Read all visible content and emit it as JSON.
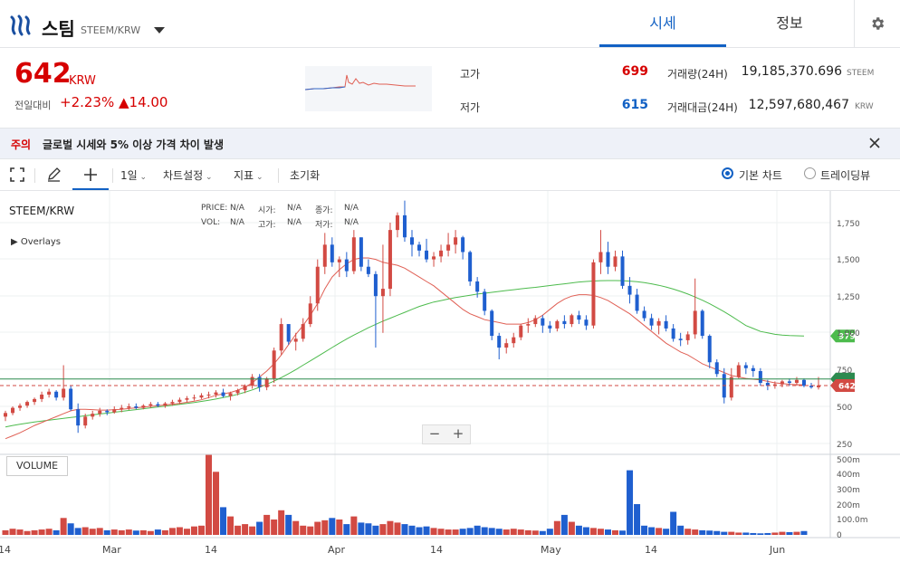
{
  "header": {
    "coin_name": "스팀",
    "pair": "STEEM/KRW",
    "tab_price": "시세",
    "tab_info": "정보"
  },
  "price": {
    "current": "642",
    "unit": "KRW",
    "change_label": "전일대비",
    "change_rate": "+2.23%",
    "change_amount": "▲14.00"
  },
  "stats": {
    "high_label": "고가",
    "high_value": "699",
    "low_label": "저가",
    "low_value": "615",
    "volume_label": "거래량(24H)",
    "volume_value": "19,185,370.696",
    "volume_unit": "STEEM",
    "amount_label": "거래대금(24H)",
    "amount_value": "12,597,680,467",
    "amount_unit": "KRW"
  },
  "notice": {
    "tag": "주의",
    "text": "글로벌 시세와 5% 이상 가격 차이 발생"
  },
  "toolbar": {
    "interval": "1일",
    "chart_settings": "차트설정",
    "indicators": "지표",
    "reset": "초기화",
    "basic_chart": "기본 차트",
    "tradingview": "트레이딩뷰"
  },
  "legend": {
    "symbol": "STEEM/KRW",
    "overlays": "▶ Overlays",
    "price_label": "PRICE:",
    "price_value": "N/A",
    "open_label": "시가:",
    "open_value": "N/A",
    "close_label": "종가:",
    "close_value": "N/A",
    "vol_label": "VOL:",
    "vol_value": "N/A",
    "high_label": "고가:",
    "high_value": "N/A",
    "low_label": "저가:",
    "low_value": "N/A",
    "volume_box": "VOLUME"
  },
  "colors": {
    "up": "#d24a43",
    "down": "#1f5fcf",
    "ma_short": "#e06055",
    "ma_long": "#4dbb4d",
    "accent": "#1261c4",
    "price_red": "#d60000"
  },
  "chart_data": {
    "type": "candlestick",
    "price_axis": {
      "ticks": [
        "1,750",
        "1,500",
        "1,250",
        "1,000",
        "750",
        "500",
        "250"
      ],
      "markers": [
        {
          "value": 979,
          "label": "979",
          "color": "#4dbb4d"
        },
        {
          "value": 686,
          "label": "",
          "color": "#2c8a4f"
        },
        {
          "value": 642,
          "label": "642",
          "color": "#d24a43"
        }
      ]
    },
    "volume_axis": {
      "ticks": [
        "500m",
        "400m",
        "300m",
        "200m",
        "100.0m",
        "0"
      ]
    },
    "x_ticks": [
      "14",
      "Mar",
      "14",
      "Apr",
      "14",
      "May",
      "14",
      "Jun"
    ],
    "candles": [
      [
        430,
        470,
        400,
        455
      ],
      [
        455,
        500,
        440,
        490
      ],
      [
        490,
        520,
        470,
        505
      ],
      [
        505,
        540,
        490,
        530
      ],
      [
        530,
        560,
        510,
        550
      ],
      [
        550,
        600,
        530,
        580
      ],
      [
        580,
        620,
        560,
        600
      ],
      [
        600,
        610,
        540,
        560
      ],
      [
        560,
        780,
        540,
        620
      ],
      [
        620,
        640,
        470,
        480
      ],
      [
        480,
        520,
        320,
        370
      ],
      [
        370,
        450,
        350,
        430
      ],
      [
        430,
        470,
        410,
        450
      ],
      [
        450,
        490,
        430,
        470
      ],
      [
        470,
        480,
        440,
        460
      ],
      [
        460,
        500,
        450,
        480
      ],
      [
        480,
        510,
        460,
        490
      ],
      [
        490,
        520,
        475,
        500
      ],
      [
        500,
        520,
        480,
        490
      ],
      [
        490,
        515,
        480,
        505
      ],
      [
        505,
        530,
        490,
        515
      ],
      [
        515,
        530,
        495,
        505
      ],
      [
        505,
        530,
        490,
        520
      ],
      [
        520,
        545,
        505,
        530
      ],
      [
        530,
        560,
        515,
        545
      ],
      [
        545,
        570,
        530,
        555
      ],
      [
        555,
        580,
        540,
        560
      ],
      [
        560,
        590,
        550,
        575
      ],
      [
        575,
        600,
        555,
        580
      ],
      [
        580,
        610,
        560,
        595
      ],
      [
        595,
        620,
        560,
        570
      ],
      [
        570,
        600,
        540,
        590
      ],
      [
        590,
        620,
        575,
        610
      ],
      [
        610,
        650,
        590,
        640
      ],
      [
        640,
        720,
        620,
        700
      ],
      [
        700,
        720,
        600,
        630
      ],
      [
        630,
        700,
        610,
        690
      ],
      [
        690,
        900,
        660,
        880
      ],
      [
        880,
        1100,
        850,
        1060
      ],
      [
        1060,
        1050,
        920,
        940
      ],
      [
        940,
        1000,
        880,
        960
      ],
      [
        960,
        1100,
        940,
        1060
      ],
      [
        1060,
        1250,
        1040,
        1200
      ],
      [
        1200,
        1500,
        1150,
        1450
      ],
      [
        1450,
        1680,
        1400,
        1600
      ],
      [
        1600,
        1650,
        1450,
        1480
      ],
      [
        1480,
        1520,
        1380,
        1500
      ],
      [
        1500,
        1550,
        1380,
        1420
      ],
      [
        1420,
        1700,
        1400,
        1650
      ],
      [
        1650,
        1650,
        1420,
        1450
      ],
      [
        1450,
        1500,
        1380,
        1400
      ],
      [
        1400,
        1420,
        900,
        1250
      ],
      [
        1250,
        1600,
        1000,
        1300
      ],
      [
        1300,
        1750,
        1250,
        1700
      ],
      [
        1700,
        1820,
        1650,
        1800
      ],
      [
        1800,
        1900,
        1620,
        1650
      ],
      [
        1650,
        1700,
        1520,
        1600
      ],
      [
        1600,
        1620,
        1520,
        1560
      ],
      [
        1560,
        1640,
        1480,
        1500
      ],
      [
        1500,
        1550,
        1450,
        1520
      ],
      [
        1520,
        1600,
        1480,
        1560
      ],
      [
        1560,
        1680,
        1520,
        1600
      ],
      [
        1600,
        1700,
        1540,
        1650
      ],
      [
        1650,
        1660,
        1500,
        1550
      ],
      [
        1550,
        1560,
        1320,
        1350
      ],
      [
        1350,
        1380,
        1240,
        1280
      ],
      [
        1280,
        1300,
        1120,
        1150
      ],
      [
        1150,
        1160,
        950,
        980
      ],
      [
        980,
        1000,
        820,
        900
      ],
      [
        900,
        960,
        860,
        930
      ],
      [
        930,
        1000,
        900,
        970
      ],
      [
        970,
        1060,
        950,
        1050
      ],
      [
        1050,
        1100,
        1000,
        1060
      ],
      [
        1060,
        1120,
        1040,
        1100
      ],
      [
        1100,
        1120,
        1000,
        1050
      ],
      [
        1050,
        1080,
        1000,
        1030
      ],
      [
        1030,
        1090,
        1010,
        1080
      ],
      [
        1080,
        1120,
        1030,
        1060
      ],
      [
        1060,
        1130,
        1040,
        1120
      ],
      [
        1120,
        1150,
        1060,
        1090
      ],
      [
        1090,
        1120,
        1020,
        1050
      ],
      [
        1050,
        1500,
        1030,
        1480
      ],
      [
        1480,
        1700,
        1400,
        1550
      ],
      [
        1550,
        1620,
        1400,
        1450
      ],
      [
        1450,
        1560,
        1420,
        1520
      ],
      [
        1520,
        1560,
        1300,
        1320
      ],
      [
        1320,
        1380,
        1200,
        1260
      ],
      [
        1260,
        1300,
        1130,
        1150
      ],
      [
        1150,
        1180,
        1080,
        1100
      ],
      [
        1100,
        1130,
        1020,
        1050
      ],
      [
        1050,
        1100,
        990,
        1080
      ],
      [
        1080,
        1120,
        1010,
        1030
      ],
      [
        1030,
        1060,
        940,
        960
      ],
      [
        960,
        1000,
        910,
        950
      ],
      [
        950,
        1010,
        920,
        990
      ],
      [
        990,
        1370,
        960,
        1150
      ],
      [
        1150,
        1160,
        960,
        980
      ],
      [
        980,
        990,
        760,
        800
      ],
      [
        800,
        820,
        700,
        720
      ],
      [
        720,
        760,
        520,
        560
      ],
      [
        560,
        760,
        540,
        700
      ],
      [
        700,
        800,
        690,
        780
      ],
      [
        780,
        800,
        720,
        760
      ],
      [
        760,
        780,
        700,
        740
      ],
      [
        740,
        760,
        640,
        660
      ],
      [
        660,
        680,
        610,
        640
      ],
      [
        640,
        670,
        620,
        650
      ],
      [
        650,
        680,
        630,
        670
      ],
      [
        670,
        690,
        640,
        660
      ],
      [
        660,
        700,
        640,
        680
      ],
      [
        680,
        690,
        630,
        640
      ],
      [
        640,
        660,
        620,
        630
      ],
      [
        630,
        700,
        615,
        642
      ]
    ],
    "volumes": [
      30,
      40,
      35,
      25,
      30,
      35,
      40,
      30,
      110,
      75,
      45,
      50,
      40,
      45,
      30,
      35,
      30,
      35,
      28,
      30,
      25,
      35,
      30,
      45,
      50,
      40,
      55,
      60,
      520,
      410,
      180,
      120,
      60,
      70,
      55,
      85,
      130,
      100,
      160,
      130,
      90,
      60,
      55,
      85,
      95,
      110,
      100,
      70,
      120,
      80,
      75,
      60,
      70,
      90,
      80,
      70,
      60,
      50,
      55,
      45,
      40,
      35,
      35,
      40,
      45,
      60,
      50,
      45,
      40,
      35,
      40,
      35,
      30,
      28,
      25,
      40,
      90,
      130,
      85,
      60,
      50,
      45,
      40,
      35,
      30,
      28,
      420,
      200,
      60,
      50,
      45,
      40,
      150,
      60,
      40,
      35,
      30,
      28,
      25,
      20,
      20,
      15,
      15,
      12,
      10,
      12,
      15,
      20,
      18,
      20,
      25
    ],
    "ma_short_values": [
      280,
      300,
      320,
      345,
      370,
      390,
      410,
      430,
      450,
      470,
      480,
      480,
      478,
      475,
      475,
      478,
      480,
      485,
      490,
      495,
      500,
      505,
      510,
      515,
      520,
      528,
      535,
      545,
      560,
      575,
      585,
      595,
      610,
      630,
      660,
      700,
      740,
      790,
      850,
      920,
      990,
      1050,
      1120,
      1200,
      1300,
      1380,
      1430,
      1470,
      1500,
      1510,
      1510,
      1500,
      1480,
      1470,
      1460,
      1440,
      1410,
      1380,
      1350,
      1320,
      1280,
      1240,
      1200,
      1160,
      1130,
      1110,
      1090,
      1080,
      1070,
      1060,
      1060,
      1060,
      1070,
      1090,
      1120,
      1160,
      1200,
      1230,
      1250,
      1260,
      1260,
      1255,
      1240,
      1220,
      1190,
      1160,
      1130,
      1090,
      1050,
      1010,
      970,
      930,
      900,
      870,
      850,
      820,
      790,
      770,
      750,
      730,
      710,
      700,
      690,
      685,
      680,
      670,
      660,
      655,
      650,
      648,
      646
    ],
    "ma_long_values": [
      360,
      370,
      378,
      386,
      394,
      400,
      406,
      412,
      418,
      424,
      430,
      436,
      442,
      448,
      454,
      460,
      466,
      472,
      478,
      484,
      490,
      496,
      502,
      508,
      514,
      520,
      526,
      534,
      542,
      550,
      560,
      570,
      582,
      596,
      612,
      630,
      650,
      672,
      696,
      722,
      750,
      780,
      810,
      840,
      870,
      900,
      930,
      958,
      985,
      1010,
      1035,
      1058,
      1080,
      1100,
      1120,
      1140,
      1160,
      1180,
      1195,
      1210,
      1220,
      1230,
      1240,
      1248,
      1256,
      1264,
      1270,
      1276,
      1282,
      1288,
      1294,
      1300,
      1305,
      1310,
      1316,
      1322,
      1328,
      1334,
      1340,
      1346,
      1350,
      1353,
      1355,
      1356,
      1356,
      1355,
      1352,
      1348,
      1342,
      1334,
      1324,
      1312,
      1298,
      1282,
      1264,
      1244,
      1222,
      1198,
      1172,
      1144,
      1114,
      1082,
      1050,
      1030,
      1010,
      1000,
      990,
      985,
      982,
      980,
      979
    ]
  }
}
